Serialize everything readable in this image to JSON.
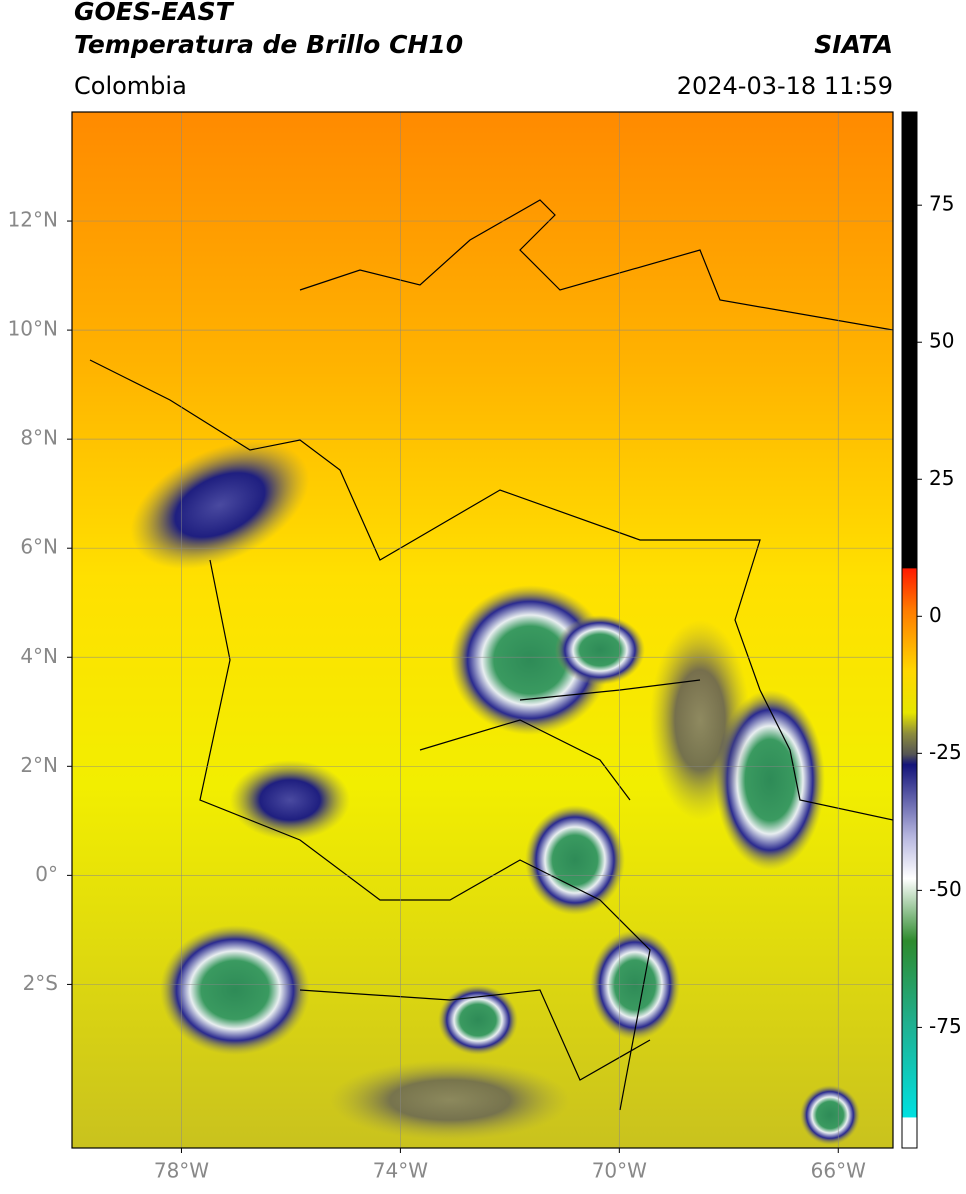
{
  "header": {
    "title": "GOES-EAST",
    "subtitle": "Temperatura de Brillo CH10",
    "region": "Colombia",
    "source": "SIATA",
    "datetime": "2024-03-18 11:59"
  },
  "map": {
    "xlim": [
      -80,
      -65
    ],
    "ylim": [
      -5,
      14
    ],
    "xticks": [
      {
        "value": -78,
        "label": "78°W"
      },
      {
        "value": -74,
        "label": "74°W"
      },
      {
        "value": -70,
        "label": "70°W"
      },
      {
        "value": -66,
        "label": "66°W"
      }
    ],
    "yticks": [
      {
        "value": 12,
        "label": "12°N"
      },
      {
        "value": 10,
        "label": "10°N"
      },
      {
        "value": 8,
        "label": "8°N"
      },
      {
        "value": 6,
        "label": "6°N"
      },
      {
        "value": 4,
        "label": "4°N"
      },
      {
        "value": 2,
        "label": "2°N"
      },
      {
        "value": 0,
        "label": "0°"
      },
      {
        "value": -2,
        "label": "2°S"
      }
    ]
  },
  "colorbar": {
    "lim": [
      -97,
      92
    ],
    "ticks": [
      75,
      50,
      25,
      0,
      -25,
      -50,
      -75
    ]
  }
}
